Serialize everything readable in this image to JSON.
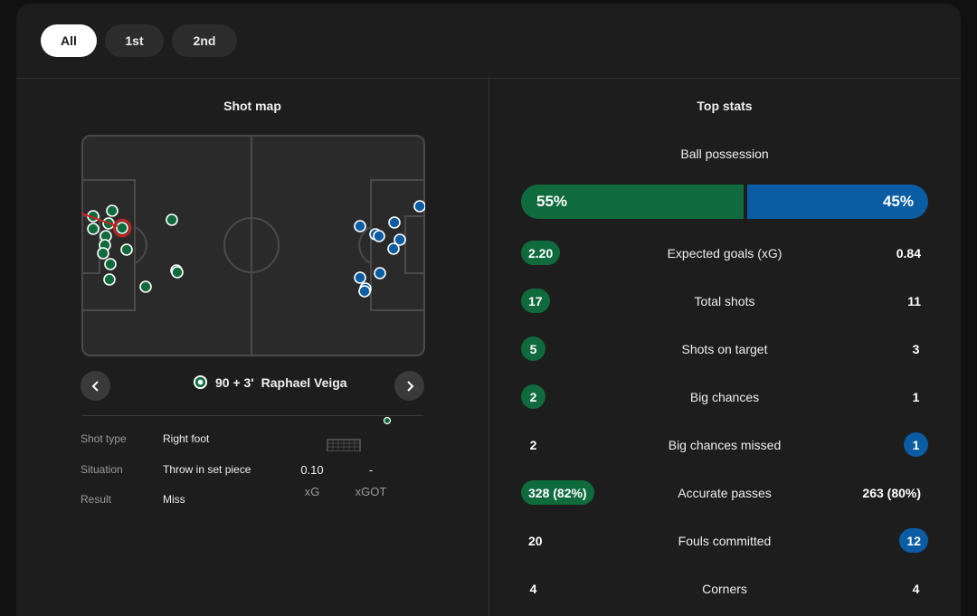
{
  "tabs": [
    {
      "label": "All",
      "active": true
    },
    {
      "label": "1st",
      "active": false
    },
    {
      "label": "2nd",
      "active": false
    }
  ],
  "shot_map": {
    "title": "Shot map",
    "selected_shot": {
      "minute": "90 + 3'",
      "player": "Raphael Veiga",
      "team_crest_icon": "palmeiras-crest-icon"
    },
    "details": [
      {
        "label": "Shot type",
        "value": "Right foot"
      },
      {
        "label": "Situation",
        "value": "Throw in set piece"
      },
      {
        "label": "Result",
        "value": "Miss"
      }
    ],
    "metrics": {
      "xg": {
        "value": "0.10",
        "label": "xG"
      },
      "xgot": {
        "value": "-",
        "label": "xGOT"
      }
    },
    "colors": {
      "home": "#0f6b3d",
      "away": "#0b5da3",
      "selected": "#d0201f"
    }
  },
  "top_stats": {
    "title": "Top stats",
    "possession": {
      "label": "Ball possession",
      "home": "55%",
      "away": "45%",
      "home_share": 55
    },
    "rows": [
      {
        "name": "Expected goals (xG)",
        "home": "2.20",
        "away": "0.84",
        "highlight": "home"
      },
      {
        "name": "Total shots",
        "home": "17",
        "away": "11",
        "highlight": "home"
      },
      {
        "name": "Shots on target",
        "home": "5",
        "away": "3",
        "highlight": "home"
      },
      {
        "name": "Big chances",
        "home": "2",
        "away": "1",
        "highlight": "home"
      },
      {
        "name": "Big chances missed",
        "home": "2",
        "away": "1",
        "highlight": "away"
      },
      {
        "name": "Accurate passes",
        "home": "328 (82%)",
        "away": "263 (80%)",
        "highlight": "home"
      },
      {
        "name": "Fouls committed",
        "home": "20",
        "away": "12",
        "highlight": "away"
      },
      {
        "name": "Corners",
        "home": "4",
        "away": "4",
        "highlight": "none"
      }
    ]
  }
}
